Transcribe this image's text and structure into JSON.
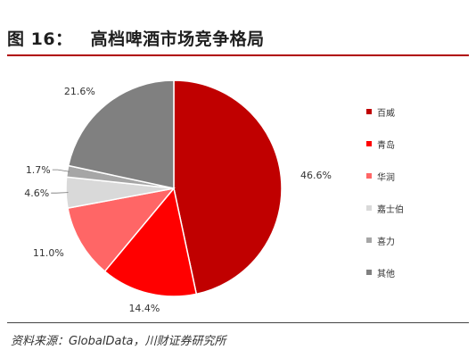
{
  "header": {
    "figure_number": "图 16：",
    "title": "高档啤酒市场竞争格局"
  },
  "source": "资料来源：GlobalData，川财证券研究所",
  "chart_data": {
    "type": "pie",
    "legend_position": "right",
    "slices": [
      {
        "name": "百威",
        "value": 46.6,
        "label": "46.6%",
        "color": "#C00000"
      },
      {
        "name": "青岛",
        "value": 14.4,
        "label": "14.4%",
        "color": "#FF0000"
      },
      {
        "name": "华润",
        "value": 11.0,
        "label": "11.0%",
        "color": "#FF6666"
      },
      {
        "name": "嘉士伯",
        "value": 4.6,
        "label": "4.6%",
        "color": "#D9D9D9"
      },
      {
        "name": "喜力",
        "value": 1.7,
        "label": "1.7%",
        "color": "#A6A6A6"
      },
      {
        "name": "其他",
        "value": 21.6,
        "label": "21.6%",
        "color": "#808080"
      }
    ]
  }
}
